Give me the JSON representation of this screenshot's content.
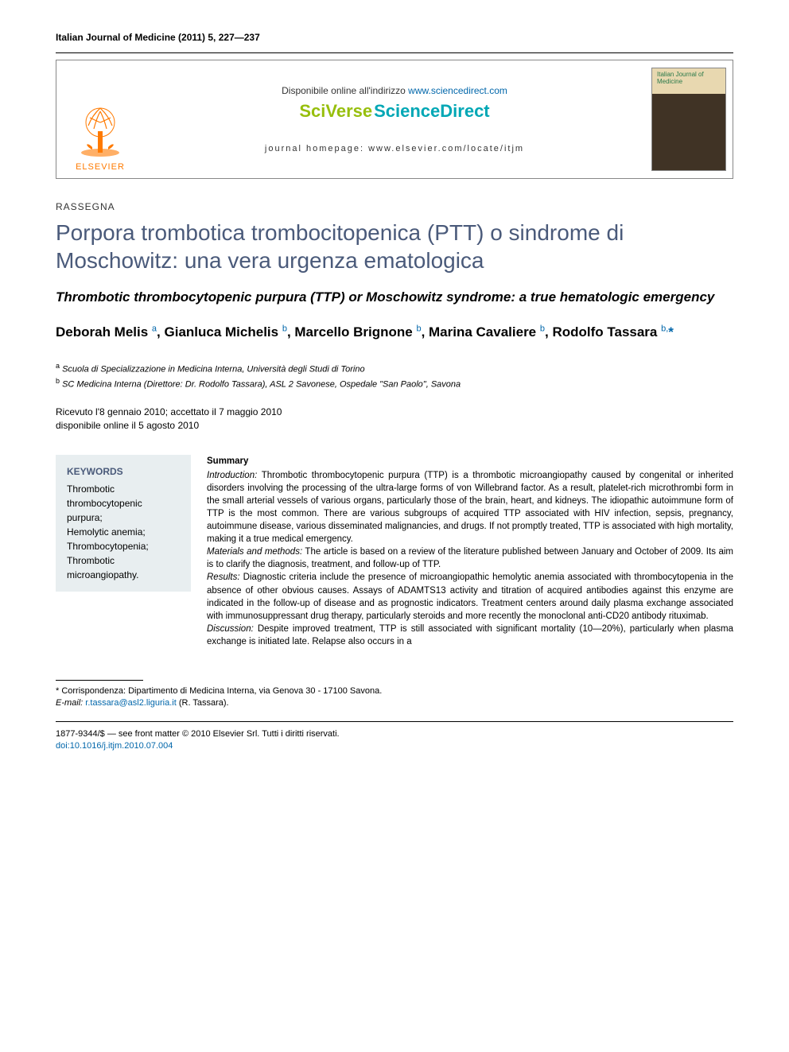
{
  "journal_ref": "Italian Journal of Medicine (2011) 5, 227—237",
  "masthead": {
    "available_prefix": "Disponibile online all'indirizzo ",
    "available_url": "www.sciencedirect.com",
    "sv1": "SciVerse",
    "sv2": " ScienceDirect",
    "homepage": "journal homepage: www.elsevier.com/locate/itjm",
    "publisher": "ELSEVIER",
    "cover_title": "Italian Journal of Medicine"
  },
  "section_label": "RASSEGNA",
  "title_it": "Porpora trombotica trombocitopenica (PTT) o sindrome di Moschowitz: una vera urgenza ematologica",
  "title_en": "Thrombotic thrombocytopenic purpura (TTP) or Moschowitz syndrome: a true hematologic emergency",
  "authors": [
    {
      "name": "Deborah Melis",
      "aff": "a"
    },
    {
      "name": "Gianluca Michelis",
      "aff": "b"
    },
    {
      "name": "Marcello Brignone",
      "aff": "b"
    },
    {
      "name": "Marina Cavaliere",
      "aff": "b"
    },
    {
      "name": "Rodolfo Tassara",
      "aff": "b",
      "corr": true
    }
  ],
  "affiliations": {
    "a": "Scuola di Specializzazione in Medicina Interna, Università degli Studi di Torino",
    "b": "SC Medicina Interna (Direttore: Dr. Rodolfo Tassara), ASL 2 Savonese, Ospedale \"San Paolo\", Savona"
  },
  "dates": {
    "received_accepted": "Ricevuto l'8 gennaio 2010; accettato il 7 maggio 2010",
    "online": "disponibile online il 5 agosto 2010"
  },
  "keywords": {
    "head": "KEYWORDS",
    "list": "Thrombotic thrombocytopenic purpura;\nHemolytic anemia;\nThrombocytopenia;\nThrombotic microangiopathy."
  },
  "summary": {
    "head": "Summary",
    "intro_label": "Introduction:",
    "intro": " Thrombotic thrombocytopenic purpura (TTP) is a thrombotic microangiopathy caused by congenital or inherited disorders involving the processing of the ultra-large forms of von Willebrand factor. As a result, platelet-rich microthrombi form in the small arterial vessels of various organs, particularly those of the brain, heart, and kidneys. The idiopathic autoimmune form of TTP is the most common. There are various subgroups of acquired TTP associated with HIV infection, sepsis, pregnancy, autoimmune disease, various disseminated malignancies, and drugs. If not promptly treated, TTP is associated with high mortality, making it a true medical emergency.",
    "mm_label": "Materials and methods:",
    "mm": " The article is based on a review of the literature published between January and October of 2009. Its aim is to clarify the diagnosis, treatment, and follow-up of TTP.",
    "res_label": "Results:",
    "res": " Diagnostic criteria include the presence of microangiopathic hemolytic anemia associated with thrombocytopenia in the absence of other obvious causes. Assays of ADAMTS13 activity and titration of acquired antibodies against this enzyme are indicated in the follow-up of disease and as prognostic indicators. Treatment centers around daily plasma exchange associated with immunosuppressant drug therapy, particularly steroids and more recently the monoclonal anti-CD20 antibody rituximab.",
    "disc_label": "Discussion:",
    "disc": " Despite improved treatment, TTP is still associated with significant mortality (10—20%), particularly when plasma exchange is initiated late. Relapse also occurs in a"
  },
  "correspondence": {
    "star": "*",
    "label": " Corrispondenza: Dipartimento di Medicina Interna, via Genova 30 - 17100 Savona.",
    "email_label": "E-mail: ",
    "email": "r.tassara@asl2.liguria.it",
    "email_suffix": " (R. Tassara)."
  },
  "footer": {
    "issn_line": "1877-9344/$ — see front matter © 2010 Elsevier Srl. Tutti i diritti riservati.",
    "doi": "doi:10.1016/j.itjm.2010.07.004"
  },
  "colors": {
    "title": "#4a5a7a",
    "link": "#0066aa",
    "elsevier": "#ff7a00",
    "sv_green": "#97bf0d",
    "sv_teal": "#00a7b5",
    "kw_bg": "#e8eef0"
  }
}
